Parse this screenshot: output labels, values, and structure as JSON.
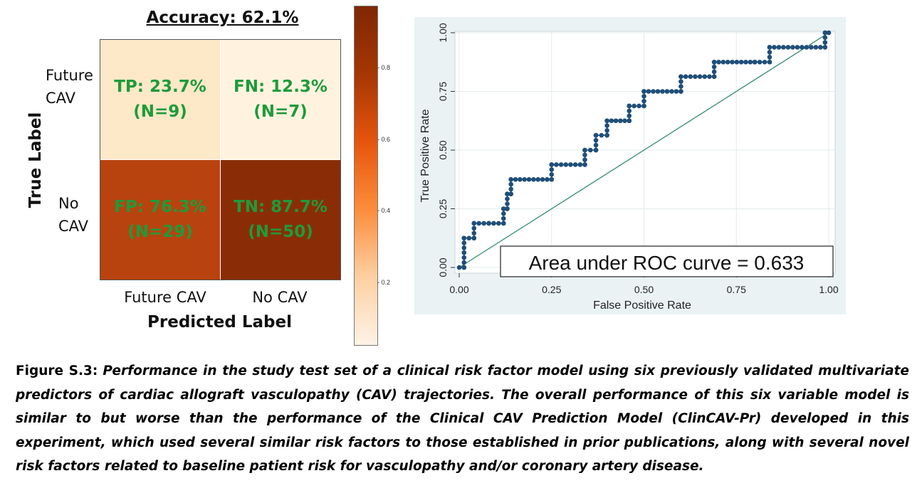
{
  "confusion_matrix": {
    "title": "Accuracy: 62.1%",
    "ylabel": "True Label",
    "xlabel": "Predicted Label",
    "row_labels": [
      "Future\nCAV",
      "No\nCAV"
    ],
    "col_labels": [
      "Future CAV",
      "No CAV"
    ],
    "cells": [
      [
        "TP: 23.7%\n(N=9)",
        "FN: 12.3%\n(N=7)"
      ],
      [
        "FP: 76.3%\n(N=29)",
        "TN: 87.7%\n(N=50)"
      ]
    ],
    "cell_colors": [
      [
        "#fde8c8",
        "#fff3e0"
      ],
      [
        "#b8430f",
        "#8a2d07"
      ]
    ],
    "text_color": "#1e9b3a",
    "colorbar_ticks": [
      "0.8",
      "0.6",
      "0.4",
      "0.2"
    ]
  },
  "chart_data": {
    "type": "line",
    "title": "",
    "xlabel": "False Positive Rate",
    "ylabel": "True Positive Rate",
    "xlim": [
      0,
      1
    ],
    "ylim": [
      0,
      1
    ],
    "x_ticks": [
      "0.00",
      "0.25",
      "0.50",
      "0.75",
      "1.00"
    ],
    "y_ticks": [
      "0.00",
      "0.25",
      "0.50",
      "0.75",
      "1.00"
    ],
    "annotation": "Area under ROC curve = 0.633",
    "grid": true,
    "series": [
      {
        "color": "#1f4e79",
        "x": [
          0.0,
          0.013,
          0.013,
          0.013,
          0.04,
          0.04,
          0.08,
          0.12,
          0.12,
          0.13,
          0.13,
          0.14,
          0.14,
          0.25,
          0.25,
          0.34,
          0.34,
          0.37,
          0.37,
          0.4,
          0.4,
          0.46,
          0.46,
          0.5,
          0.5,
          0.6,
          0.6,
          0.69,
          0.69,
          0.8,
          0.8,
          0.84,
          0.84,
          0.99,
          0.99,
          1.0
        ],
        "y": [
          0.0,
          0.0,
          0.063,
          0.125,
          0.125,
          0.188,
          0.188,
          0.188,
          0.25,
          0.25,
          0.313,
          0.313,
          0.375,
          0.375,
          0.438,
          0.438,
          0.5,
          0.5,
          0.563,
          0.563,
          0.625,
          0.625,
          0.688,
          0.688,
          0.75,
          0.75,
          0.813,
          0.813,
          0.875,
          0.875,
          0.875,
          0.875,
          0.938,
          0.938,
          1.0,
          1.0
        ]
      }
    ]
  },
  "caption": {
    "label": "Figure S.3:",
    "text": "Performance in the study test set of a clinical risk factor model using six previously validated multivariate predictors of cardiac allograft vasculopathy (CAV) trajectories.  The overall performance of this six variable model is similar to but worse than the performance of the Clinical CAV Prediction Model (ClinCAV-Pr) developed in this experiment, which used several similar risk factors to those established in prior publications, along with several novel risk factors related to baseline patient risk for vasculopathy and/or coronary artery disease."
  }
}
